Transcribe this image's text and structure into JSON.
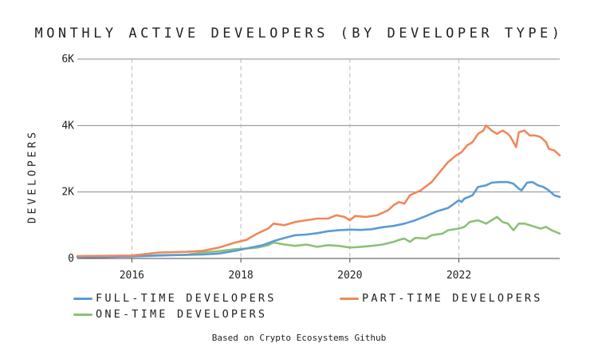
{
  "chart_data": {
    "type": "line",
    "title": "MONTHLY ACTIVE DEVELOPERS (BY DEVELOPER TYPE)",
    "xlabel": "",
    "ylabel": "DEVELOPERS",
    "xlim": [
      2015.0,
      2023.85
    ],
    "ylim": [
      0,
      6000
    ],
    "x_ticks": [
      2016,
      2018,
      2020,
      2022
    ],
    "x_tick_labels": [
      "2016",
      "2018",
      "2020",
      "2022"
    ],
    "y_ticks": [
      0,
      2000,
      4000,
      6000
    ],
    "y_tick_labels": [
      "0",
      "2K",
      "4K",
      "6K"
    ],
    "grid": {
      "horizontal": "solid",
      "vertical": "dashed"
    },
    "legend_position": "bottom",
    "series": [
      {
        "name": "FULL-TIME DEVELOPERS",
        "color": "#5b9bd5",
        "points": [
          [
            2015.0,
            40
          ],
          [
            2015.5,
            50
          ],
          [
            2016.0,
            60
          ],
          [
            2016.5,
            90
          ],
          [
            2017.0,
            110
          ],
          [
            2017.3,
            120
          ],
          [
            2017.6,
            150
          ],
          [
            2017.9,
            230
          ],
          [
            2018.1,
            300
          ],
          [
            2018.4,
            400
          ],
          [
            2018.6,
            520
          ],
          [
            2018.8,
            620
          ],
          [
            2019.0,
            700
          ],
          [
            2019.2,
            720
          ],
          [
            2019.4,
            760
          ],
          [
            2019.6,
            820
          ],
          [
            2019.8,
            850
          ],
          [
            2020.0,
            870
          ],
          [
            2020.2,
            860
          ],
          [
            2020.4,
            880
          ],
          [
            2020.6,
            940
          ],
          [
            2020.8,
            980
          ],
          [
            2021.0,
            1050
          ],
          [
            2021.2,
            1150
          ],
          [
            2021.4,
            1280
          ],
          [
            2021.6,
            1420
          ],
          [
            2021.8,
            1520
          ],
          [
            2022.0,
            1750
          ],
          [
            2022.05,
            1700
          ],
          [
            2022.1,
            1800
          ],
          [
            2022.25,
            1900
          ],
          [
            2022.35,
            2150
          ],
          [
            2022.5,
            2200
          ],
          [
            2022.6,
            2280
          ],
          [
            2022.75,
            2300
          ],
          [
            2022.9,
            2300
          ],
          [
            2023.0,
            2250
          ],
          [
            2023.1,
            2100
          ],
          [
            2023.15,
            2050
          ],
          [
            2023.25,
            2280
          ],
          [
            2023.35,
            2300
          ],
          [
            2023.45,
            2200
          ],
          [
            2023.55,
            2150
          ],
          [
            2023.65,
            2050
          ],
          [
            2023.75,
            1900
          ],
          [
            2023.85,
            1850
          ]
        ]
      },
      {
        "name": "PART-TIME DEVELOPERS",
        "color": "#f0885c",
        "points": [
          [
            2015.0,
            70
          ],
          [
            2015.5,
            80
          ],
          [
            2016.0,
            90
          ],
          [
            2016.5,
            180
          ],
          [
            2017.0,
            200
          ],
          [
            2017.3,
            230
          ],
          [
            2017.6,
            330
          ],
          [
            2017.9,
            480
          ],
          [
            2018.1,
            560
          ],
          [
            2018.3,
            750
          ],
          [
            2018.5,
            900
          ],
          [
            2018.6,
            1050
          ],
          [
            2018.8,
            1000
          ],
          [
            2019.0,
            1100
          ],
          [
            2019.2,
            1150
          ],
          [
            2019.4,
            1200
          ],
          [
            2019.6,
            1200
          ],
          [
            2019.75,
            1300
          ],
          [
            2019.9,
            1250
          ],
          [
            2020.0,
            1150
          ],
          [
            2020.1,
            1280
          ],
          [
            2020.3,
            1250
          ],
          [
            2020.5,
            1300
          ],
          [
            2020.7,
            1450
          ],
          [
            2020.8,
            1600
          ],
          [
            2020.9,
            1700
          ],
          [
            2021.0,
            1650
          ],
          [
            2021.1,
            1900
          ],
          [
            2021.3,
            2050
          ],
          [
            2021.5,
            2300
          ],
          [
            2021.6,
            2500
          ],
          [
            2021.8,
            2900
          ],
          [
            2021.95,
            3100
          ],
          [
            2022.05,
            3200
          ],
          [
            2022.15,
            3400
          ],
          [
            2022.25,
            3500
          ],
          [
            2022.35,
            3750
          ],
          [
            2022.45,
            3850
          ],
          [
            2022.5,
            4000
          ],
          [
            2022.6,
            3850
          ],
          [
            2022.7,
            3750
          ],
          [
            2022.8,
            3850
          ],
          [
            2022.9,
            3750
          ],
          [
            2022.95,
            3650
          ],
          [
            2023.05,
            3350
          ],
          [
            2023.1,
            3800
          ],
          [
            2023.2,
            3850
          ],
          [
            2023.3,
            3700
          ],
          [
            2023.4,
            3700
          ],
          [
            2023.5,
            3650
          ],
          [
            2023.6,
            3500
          ],
          [
            2023.65,
            3300
          ],
          [
            2023.75,
            3250
          ],
          [
            2023.85,
            3100
          ]
        ]
      },
      {
        "name": "ONE-TIME DEVELOPERS",
        "color": "#8cc07a",
        "points": [
          [
            2015.0,
            40
          ],
          [
            2015.5,
            50
          ],
          [
            2016.0,
            60
          ],
          [
            2016.5,
            100
          ],
          [
            2017.0,
            110
          ],
          [
            2017.3,
            180
          ],
          [
            2017.6,
            220
          ],
          [
            2017.9,
            280
          ],
          [
            2018.1,
            300
          ],
          [
            2018.3,
            330
          ],
          [
            2018.5,
            400
          ],
          [
            2018.6,
            480
          ],
          [
            2018.8,
            420
          ],
          [
            2019.0,
            380
          ],
          [
            2019.2,
            420
          ],
          [
            2019.4,
            350
          ],
          [
            2019.6,
            400
          ],
          [
            2019.8,
            380
          ],
          [
            2020.0,
            330
          ],
          [
            2020.2,
            350
          ],
          [
            2020.4,
            380
          ],
          [
            2020.6,
            420
          ],
          [
            2020.8,
            500
          ],
          [
            2020.9,
            560
          ],
          [
            2021.0,
            600
          ],
          [
            2021.1,
            500
          ],
          [
            2021.2,
            620
          ],
          [
            2021.4,
            600
          ],
          [
            2021.5,
            700
          ],
          [
            2021.7,
            750
          ],
          [
            2021.8,
            850
          ],
          [
            2022.0,
            900
          ],
          [
            2022.1,
            950
          ],
          [
            2022.2,
            1100
          ],
          [
            2022.35,
            1150
          ],
          [
            2022.5,
            1050
          ],
          [
            2022.6,
            1150
          ],
          [
            2022.7,
            1250
          ],
          [
            2022.8,
            1100
          ],
          [
            2022.9,
            1050
          ],
          [
            2023.0,
            850
          ],
          [
            2023.1,
            1050
          ],
          [
            2023.2,
            1050
          ],
          [
            2023.3,
            1000
          ],
          [
            2023.4,
            950
          ],
          [
            2023.5,
            900
          ],
          [
            2023.6,
            950
          ],
          [
            2023.7,
            850
          ],
          [
            2023.85,
            750
          ]
        ]
      }
    ],
    "source_note": "Based on Crypto Ecosystems Github"
  }
}
